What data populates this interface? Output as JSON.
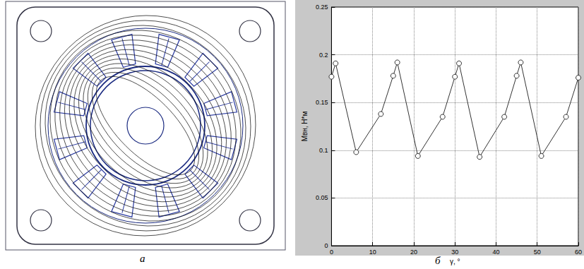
{
  "panel_labels": [
    "а",
    "б"
  ],
  "chart_data": {
    "type": "line",
    "x_label": "γ, °",
    "y_label": "Mвн, Н*м",
    "x": [
      0,
      1,
      6,
      12,
      15,
      16,
      21,
      27,
      30,
      31,
      36,
      42,
      45,
      46,
      51,
      57,
      60
    ],
    "values": [
      0.177,
      0.191,
      0.098,
      0.138,
      0.178,
      0.192,
      0.094,
      0.135,
      0.177,
      0.191,
      0.093,
      0.135,
      0.178,
      0.192,
      0.094,
      0.135,
      0.176
    ],
    "color": "#333333",
    "marker": "circle",
    "xlim": [
      0,
      60
    ],
    "xticks": [
      0,
      10,
      20,
      30,
      40,
      50,
      60
    ],
    "ylim": [
      0,
      0.25
    ],
    "yticks": [
      0,
      0.05,
      0.1,
      0.15,
      0.2,
      0.25
    ],
    "grid": true
  }
}
